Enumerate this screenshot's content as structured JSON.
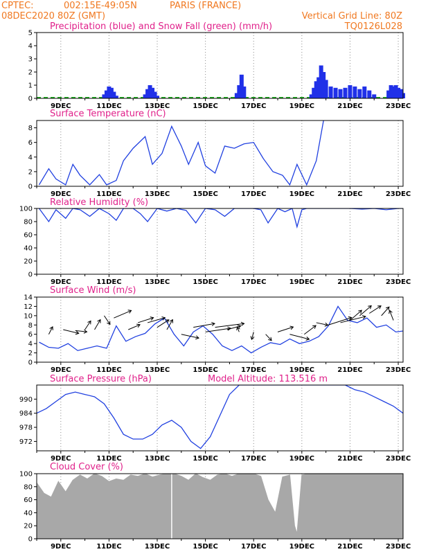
{
  "header": {
    "org": "CPTEC:",
    "location_coords": "002:15E-49:05N",
    "location_name": "PARIS (FRANCE)",
    "run_time": "08DEC2020 80Z (GMT)",
    "grid_line": "Vertical Grid Line: 80Z",
    "model_code": "TQ0126L028"
  },
  "colors": {
    "header": "#f07820",
    "title": "#e0208a",
    "precip": "#2030e8",
    "snow": "#20b020",
    "line": "#2040e0",
    "cloud": "#a8a8a8",
    "wind_arrow": "#000000"
  },
  "x_ticks": [
    "9DEC",
    "11DEC",
    "13DEC",
    "15DEC",
    "17DEC",
    "19DEC",
    "21DEC",
    "23DEC"
  ],
  "chart_data": [
    {
      "type": "bar",
      "title": "Precipitation (blue) and Snow Fall (green) (mm/h)",
      "ylim": [
        0,
        5
      ],
      "yticks": [
        "0",
        "1",
        "2",
        "3",
        "4",
        "5"
      ],
      "series": [
        {
          "name": "Precipitation",
          "x": [
            10.8,
            10.9,
            11.0,
            11.1,
            11.2,
            11.3,
            12.5,
            12.6,
            12.7,
            12.8,
            12.9,
            13.0,
            16.3,
            16.4,
            16.5,
            16.6,
            19.4,
            19.5,
            19.6,
            19.7,
            19.8,
            19.9,
            20.0,
            20.2,
            20.4,
            20.6,
            20.8,
            21.0,
            21.2,
            21.4,
            21.6,
            21.8,
            22.0,
            22.6,
            22.7,
            22.8,
            22.9,
            23.0,
            23.1,
            23.2
          ],
          "values": [
            0.3,
            0.6,
            0.9,
            0.8,
            0.5,
            0.2,
            0.3,
            0.7,
            1.0,
            0.8,
            0.5,
            0.2,
            0.4,
            1.0,
            1.8,
            0.9,
            0.3,
            0.8,
            1.3,
            1.6,
            2.5,
            2.0,
            1.4,
            0.9,
            0.8,
            0.7,
            0.8,
            1.0,
            0.9,
            0.7,
            0.9,
            0.6,
            0.3,
            0.6,
            1.0,
            0.9,
            1.0,
            0.8,
            0.7,
            0.4
          ]
        }
      ]
    },
    {
      "type": "line",
      "title": "Surface Temperature (nC)",
      "ylim": [
        0,
        9
      ],
      "yticks": [
        "0",
        "2",
        "4",
        "6",
        "8"
      ],
      "x": [
        8.1,
        8.5,
        8.8,
        9.2,
        9.5,
        9.8,
        10.2,
        10.6,
        10.9,
        11.3,
        11.6,
        12.0,
        12.5,
        12.8,
        13.2,
        13.6,
        14.0,
        14.3,
        14.7,
        15.0,
        15.4,
        15.8,
        16.2,
        16.6,
        17.0,
        17.4,
        17.8,
        18.2,
        18.5,
        18.8,
        19.2,
        19.6,
        19.9
      ],
      "values": [
        0.2,
        2.4,
        1.0,
        0.2,
        3.0,
        1.5,
        0.2,
        1.6,
        0.2,
        0.8,
        3.5,
        5.2,
        6.8,
        3.0,
        4.5,
        8.2,
        5.5,
        3.0,
        6.0,
        2.8,
        1.8,
        5.5,
        5.2,
        5.8,
        6.0,
        3.8,
        2.0,
        1.5,
        0.2,
        3.0,
        0.2,
        3.5,
        9.0
      ]
    },
    {
      "type": "line",
      "title": "Relative Humidity (%)",
      "ylim": [
        0,
        100
      ],
      "yticks": [
        "0",
        "20",
        "40",
        "60",
        "80",
        "100"
      ],
      "x": [
        8.1,
        8.3,
        8.5,
        8.8,
        9.2,
        9.5,
        9.8,
        10.2,
        10.6,
        11.0,
        11.3,
        11.6,
        12.0,
        12.3,
        12.6,
        13.0,
        13.4,
        13.8,
        14.2,
        14.6,
        15.0,
        15.4,
        15.8,
        16.2,
        16.6,
        17.0,
        17.3,
        17.6,
        18.0,
        18.3,
        18.6,
        18.8,
        19.0,
        19.2,
        19.5,
        19.8,
        20.5,
        21.0,
        21.5,
        22.0,
        22.5,
        23.0,
        23.2
      ],
      "values": [
        100,
        90,
        80,
        98,
        85,
        100,
        98,
        88,
        100,
        92,
        82,
        100,
        100,
        92,
        80,
        100,
        96,
        100,
        97,
        78,
        100,
        98,
        88,
        100,
        100,
        100,
        98,
        78,
        100,
        95,
        100,
        72,
        98,
        100,
        100,
        100,
        100,
        100,
        99,
        100,
        98,
        100,
        100
      ]
    },
    {
      "type": "line",
      "title": "Surface Wind (m/s)",
      "ylim": [
        0,
        14
      ],
      "yticks": [
        "0",
        "2",
        "4",
        "6",
        "8",
        "10",
        "12",
        "14"
      ],
      "x": [
        8.1,
        8.5,
        8.9,
        9.3,
        9.7,
        10.1,
        10.5,
        10.9,
        11.3,
        11.7,
        12.1,
        12.5,
        12.9,
        13.3,
        13.7,
        14.1,
        14.5,
        14.9,
        15.3,
        15.7,
        16.1,
        16.5,
        16.9,
        17.3,
        17.7,
        18.1,
        18.5,
        18.9,
        19.3,
        19.7,
        20.1,
        20.5,
        20.9,
        21.3,
        21.7,
        22.1,
        22.5,
        22.9,
        23.2
      ],
      "values": [
        4.3,
        3.2,
        3.0,
        4.0,
        2.5,
        3.0,
        3.5,
        3.0,
        7.8,
        4.5,
        5.5,
        6.2,
        8.2,
        9.5,
        6.0,
        3.5,
        6.5,
        7.8,
        6.0,
        3.5,
        2.5,
        3.5,
        2.0,
        3.2,
        4.2,
        3.8,
        5.0,
        4.0,
        4.5,
        5.5,
        7.8,
        12.0,
        9.0,
        8.5,
        9.5,
        7.5,
        8.0,
        6.5,
        6.7
      ],
      "arrows": {
        "x": [
          8.5,
          9.1,
          9.6,
          10.0,
          10.4,
          10.8,
          11.2,
          11.8,
          12.2,
          12.6,
          13.0,
          13.4,
          14.0,
          14.5,
          15.0,
          15.4,
          15.9,
          16.4,
          17.0,
          17.5,
          18.0,
          18.5,
          19.1,
          19.6,
          20.1,
          20.6,
          21.0,
          21.4,
          21.8,
          22.3,
          22.8
        ],
        "u": [
          0.2,
          0.8,
          0.6,
          0.3,
          0.3,
          0.3,
          0.9,
          0.6,
          0.8,
          0.9,
          0.6,
          0.3,
          0.9,
          1.1,
          1.3,
          1.5,
          0.7,
          -0.1,
          -0.1,
          0.3,
          0.8,
          1.0,
          0.6,
          0.6,
          1.2,
          1.3,
          0.6,
          0.6,
          0.6,
          0.4,
          -0.2
        ],
        "v": [
          0.6,
          -0.3,
          -0.1,
          0.7,
          0.8,
          -0.7,
          0.6,
          0.4,
          0.4,
          0.4,
          0.6,
          0.8,
          -0.3,
          0.3,
          0.3,
          0.3,
          0.3,
          0.4,
          -0.6,
          -0.5,
          0.4,
          -0.4,
          0.7,
          -0.2,
          0.6,
          0.5,
          0.8,
          0.8,
          0.6,
          0.7,
          0.8
        ],
        "y": [
          6.0,
          7.0,
          6.8,
          7.0,
          7.0,
          10.0,
          9.5,
          7.0,
          8.5,
          8.5,
          7.5,
          7.0,
          6.0,
          7.5,
          6.5,
          7.5,
          7.0,
          6.5,
          6.5,
          6.0,
          6.5,
          6.0,
          6.0,
          8.5,
          8.0,
          8.5,
          9.0,
          10.0,
          10.5,
          10.0,
          9.0
        ]
      }
    },
    {
      "type": "line",
      "title": "Surface Pressure (hPa)",
      "annotation": "Model Altitude: 113.516 m",
      "ylim": [
        968,
        996
      ],
      "yticks": [
        "972",
        "978",
        "984",
        "990"
      ],
      "x": [
        8.0,
        8.4,
        8.8,
        9.2,
        9.6,
        10.0,
        10.4,
        10.8,
        11.2,
        11.6,
        12.0,
        12.4,
        12.8,
        13.2,
        13.6,
        14.0,
        14.4,
        14.8,
        15.2,
        15.6,
        16.0,
        16.4,
        16.8,
        17.2,
        17.6,
        18.0,
        18.4,
        18.8,
        19.2,
        19.6,
        20.0,
        20.4,
        20.8,
        21.2,
        21.6,
        22.0,
        22.4,
        22.8,
        23.2
      ],
      "values": [
        984,
        986,
        989,
        992,
        993,
        992,
        991,
        988,
        982,
        975,
        973,
        973,
        975,
        979,
        981,
        978,
        972,
        969,
        974,
        983,
        992,
        997,
        998,
        998,
        997,
        998,
        998,
        997,
        997,
        998,
        998,
        997,
        996,
        994,
        993,
        991,
        989,
        987,
        984
      ]
    },
    {
      "type": "area",
      "title": "Cloud Cover (%)",
      "ylim": [
        0,
        100
      ],
      "yticks": [
        "0",
        "20",
        "40",
        "60",
        "80",
        "100"
      ],
      "x": [
        8.0,
        8.3,
        8.6,
        8.9,
        9.2,
        9.5,
        9.8,
        10.1,
        10.4,
        10.7,
        11.0,
        11.3,
        11.6,
        11.9,
        12.2,
        12.5,
        12.8,
        13.1,
        13.4,
        13.6,
        13.7,
        14.0,
        14.3,
        14.6,
        14.9,
        15.2,
        15.5,
        15.8,
        16.1,
        16.4,
        16.7,
        17.0,
        17.3,
        17.6,
        17.9,
        18.2,
        18.5,
        18.7,
        18.8,
        19.0,
        19.3,
        19.6,
        19.9,
        20.2,
        20.5,
        20.8,
        21.1,
        21.4,
        21.7,
        22.0,
        22.3,
        22.6,
        22.9,
        23.2
      ],
      "values": [
        86,
        70,
        64,
        88,
        72,
        90,
        98,
        92,
        100,
        96,
        88,
        92,
        90,
        98,
        96,
        100,
        95,
        98,
        100,
        100,
        100,
        96,
        90,
        100,
        94,
        90,
        98,
        100,
        96,
        100,
        100,
        100,
        96,
        60,
        40,
        95,
        98,
        20,
        8,
        98,
        100,
        100,
        100,
        100,
        100,
        100,
        100,
        100,
        100,
        100,
        100,
        100,
        100,
        100
      ]
    }
  ]
}
